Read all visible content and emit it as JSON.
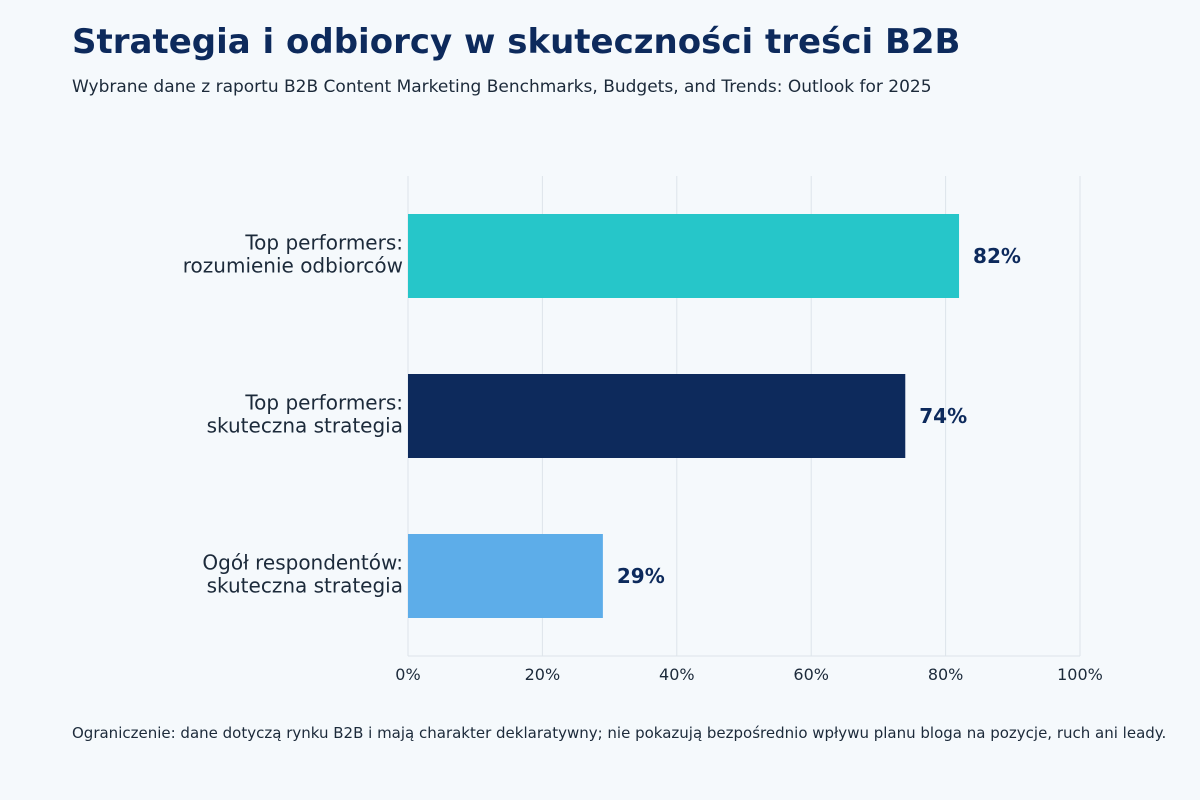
{
  "header": {
    "title": "Strategia i odbiorcy w skuteczności treści B2B",
    "subtitle": "Wybrane dane z raportu B2B Content Marketing Benchmarks, Budgets, and Trends: Outlook for 2025"
  },
  "footnote": "Ograniczenie: dane dotyczą rynku B2B i mają charakter deklaratywny; nie pokazują bezpośrednio wpływu planu bloga na pozycje, ruch ani leady.",
  "chart_data": {
    "type": "bar",
    "orientation": "horizontal",
    "categories": [
      [
        "Top performers:",
        "rozumienie odbiorców"
      ],
      [
        "Top performers:",
        "skuteczna strategia"
      ],
      [
        "Ogół respondentów:",
        "skuteczna strategia"
      ]
    ],
    "values": [
      82,
      74,
      29
    ],
    "value_labels": [
      "82%",
      "74%",
      "29%"
    ],
    "colors": [
      "#26c6c9",
      "#0d2a5c",
      "#5dade9"
    ],
    "xlim": [
      0,
      100
    ],
    "xticks": [
      0,
      20,
      40,
      60,
      80,
      100
    ],
    "xtick_labels": [
      "0%",
      "20%",
      "40%",
      "60%",
      "80%",
      "100%"
    ],
    "grid": true,
    "legend": "none"
  }
}
